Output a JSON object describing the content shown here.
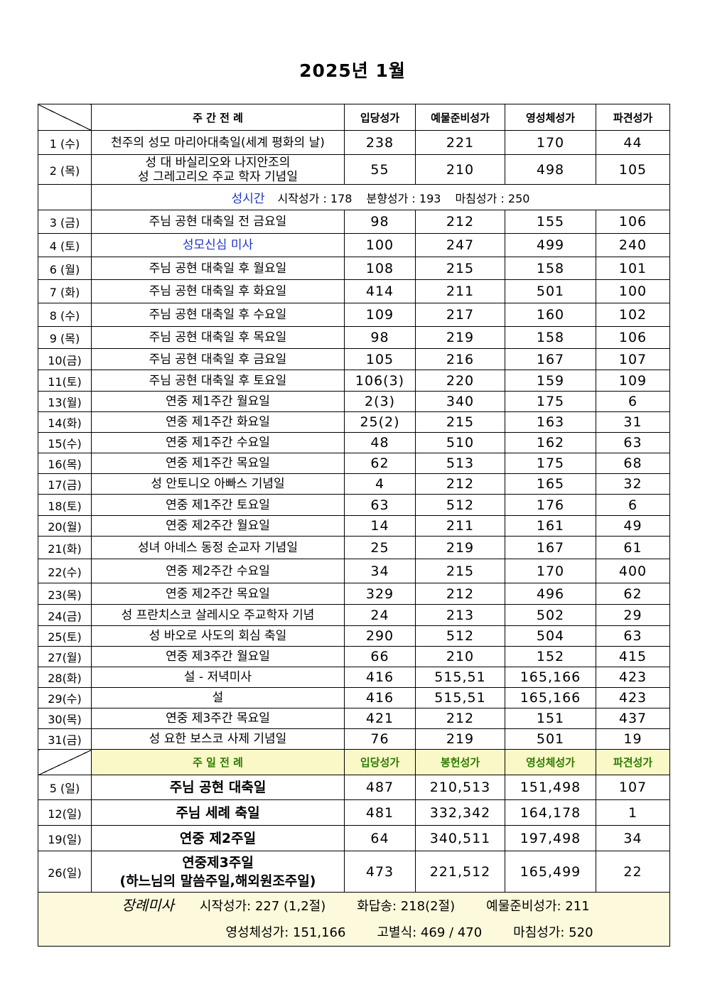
{
  "title": "2025년 1월",
  "weekday_header": {
    "name": "주 간 전 례",
    "c1": "입당성가",
    "c2": "예물준비성가",
    "c3": "영성체성가",
    "c4": "파견성가"
  },
  "hours_row": {
    "label": "성시간",
    "start": "시작성가 : 178",
    "incense": "분향성가 : 193",
    "end": "마침성가 : 250"
  },
  "weekday_rows": [
    {
      "date": "1 (수)",
      "name": "천주의 성모 마리아대축일(세계 평화의 날)",
      "c1": "238",
      "c2": "221",
      "c3": "170",
      "c4": "44"
    },
    {
      "date": "2 (목)",
      "name": "성 대 바실리오와 나지안조의",
      "name2": "성 그레고리오 주교 학자 기념일",
      "c1": "55",
      "c2": "210",
      "c3": "498",
      "c4": "105"
    },
    {
      "date": "3 (금)",
      "name": "주님 공현 대축일 전 금요일",
      "c1": "98",
      "c2": "212",
      "c3": "155",
      "c4": "106"
    },
    {
      "date": "4 (토)",
      "name": "성모신심 미사",
      "c1": "100",
      "c2": "247",
      "c3": "499",
      "c4": "240"
    },
    {
      "date": "6 (월)",
      "name": "주님 공현 대축일 후 월요일",
      "c1": "108",
      "c2": "215",
      "c3": "158",
      "c4": "101"
    },
    {
      "date": "7 (화)",
      "name": "주님 공현 대축일 후 화요일",
      "c1": "414",
      "c2": "211",
      "c3": "501",
      "c4": "100"
    },
    {
      "date": "8 (수)",
      "name": "주님 공현 대축일 후 수요일",
      "c1": "109",
      "c2": "217",
      "c3": "160",
      "c4": "102"
    },
    {
      "date": "9 (목)",
      "name": "주님 공현 대축일 후 목요일",
      "c1": "98",
      "c2": "219",
      "c3": "158",
      "c4": "106"
    },
    {
      "date": "10(금)",
      "name": "주님 공현 대축일 후 금요일",
      "c1": "105",
      "c2": "216",
      "c3": "167",
      "c4": "107"
    },
    {
      "date": "11(토)",
      "name": "주님 공현 대축일 후 토요일",
      "c1": "106(3)",
      "c2": "220",
      "c3": "159",
      "c4": "109"
    },
    {
      "date": "13(월)",
      "name": "연중 제1주간 월요일",
      "c1": "2(3)",
      "c2": "340",
      "c3": "175",
      "c4": "6"
    },
    {
      "date": "14(화)",
      "name": "연중 제1주간 화요일",
      "c1": "25(2)",
      "c2": "215",
      "c3": "163",
      "c4": "31"
    },
    {
      "date": "15(수)",
      "name": "연중 제1주간 수요일",
      "c1": "48",
      "c2": "510",
      "c3": "162",
      "c4": "63"
    },
    {
      "date": "16(목)",
      "name": "연중 제1주간 목요일",
      "c1": "62",
      "c2": "513",
      "c3": "175",
      "c4": "68"
    },
    {
      "date": "17(금)",
      "name": "성 안토니오 아빠스 기념일",
      "c1": "4",
      "c2": "212",
      "c3": "165",
      "c4": "32"
    },
    {
      "date": "18(토)",
      "name": "연중 제1주간 토요일",
      "c1": "63",
      "c2": "512",
      "c3": "176",
      "c4": "6"
    },
    {
      "date": "20(월)",
      "name": "연중 제2주간 월요일",
      "c1": "14",
      "c2": "211",
      "c3": "161",
      "c4": "49"
    },
    {
      "date": "21(화)",
      "name": "성녀 아네스 동정 순교자 기념일",
      "c1": "25",
      "c2": "219",
      "c3": "167",
      "c4": "61"
    },
    {
      "date": "22(수)",
      "name": "연중 제2주간 수요일",
      "c1": "34",
      "c2": "215",
      "c3": "170",
      "c4": "400"
    },
    {
      "date": "23(목)",
      "name": "연중 제2주간 목요일",
      "c1": "329",
      "c2": "212",
      "c3": "496",
      "c4": "62"
    },
    {
      "date": "24(금)",
      "name": "성 프란치스코 살레시오 주교학자 기념",
      "c1": "24",
      "c2": "213",
      "c3": "502",
      "c4": "29"
    },
    {
      "date": "25(토)",
      "name": "성 바오로 사도의 회심 축일",
      "c1": "290",
      "c2": "512",
      "c3": "504",
      "c4": "63"
    },
    {
      "date": "27(월)",
      "name": "연중 제3주간 월요일",
      "c1": "66",
      "c2": "210",
      "c3": "152",
      "c4": "415"
    },
    {
      "date": "28(화)",
      "name": "설 - 저녁미사",
      "c1": "416",
      "c2": "515,51",
      "c3": "165,166",
      "c4": "423"
    },
    {
      "date": "29(수)",
      "name": "설",
      "c1": "416",
      "c2": "515,51",
      "c3": "165,166",
      "c4": "423"
    },
    {
      "date": "30(목)",
      "name": "연중 제3주간 목요일",
      "c1": "421",
      "c2": "212",
      "c3": "151",
      "c4": "437"
    },
    {
      "date": "31(금)",
      "name": "성 요한 보스코 사제 기념일",
      "c1": "76",
      "c2": "219",
      "c3": "501",
      "c4": "19"
    }
  ],
  "sunday_header": {
    "name": "주 일 전 례",
    "c1": "입당성가",
    "c2": "봉헌성가",
    "c3": "영성체성가",
    "c4": "파견성가"
  },
  "sunday_rows": [
    {
      "date": "5 (일)",
      "name": "주님 공현 대축일",
      "c1": "487",
      "c2": "210,513",
      "c3": "151,498",
      "c4": "107"
    },
    {
      "date": "12(일)",
      "name": "주님 세례 축일",
      "c1": "481",
      "c2": "332,342",
      "c3": "164,178",
      "c4": "1"
    },
    {
      "date": "19(일)",
      "name": "연중 제2주일",
      "c1": "64",
      "c2": "340,511",
      "c3": "197,498",
      "c4": "34"
    },
    {
      "date": "26(일)",
      "name": "연중제3주일",
      "name2": "(하느님의 말씀주일,해외원조주일)",
      "c1": "473",
      "c2": "221,512",
      "c3": "165,499",
      "c4": "22"
    }
  ],
  "funeral": {
    "label": "장례미사",
    "start": "시작성가: 227 (1,2절)",
    "response": "화답송: 218(2절)",
    "offertory": "예물준비성가: 211",
    "communion": "영성체성가: 151,166",
    "farewell": "고별식: 469 / 470",
    "end": "마침성가: 520"
  }
}
